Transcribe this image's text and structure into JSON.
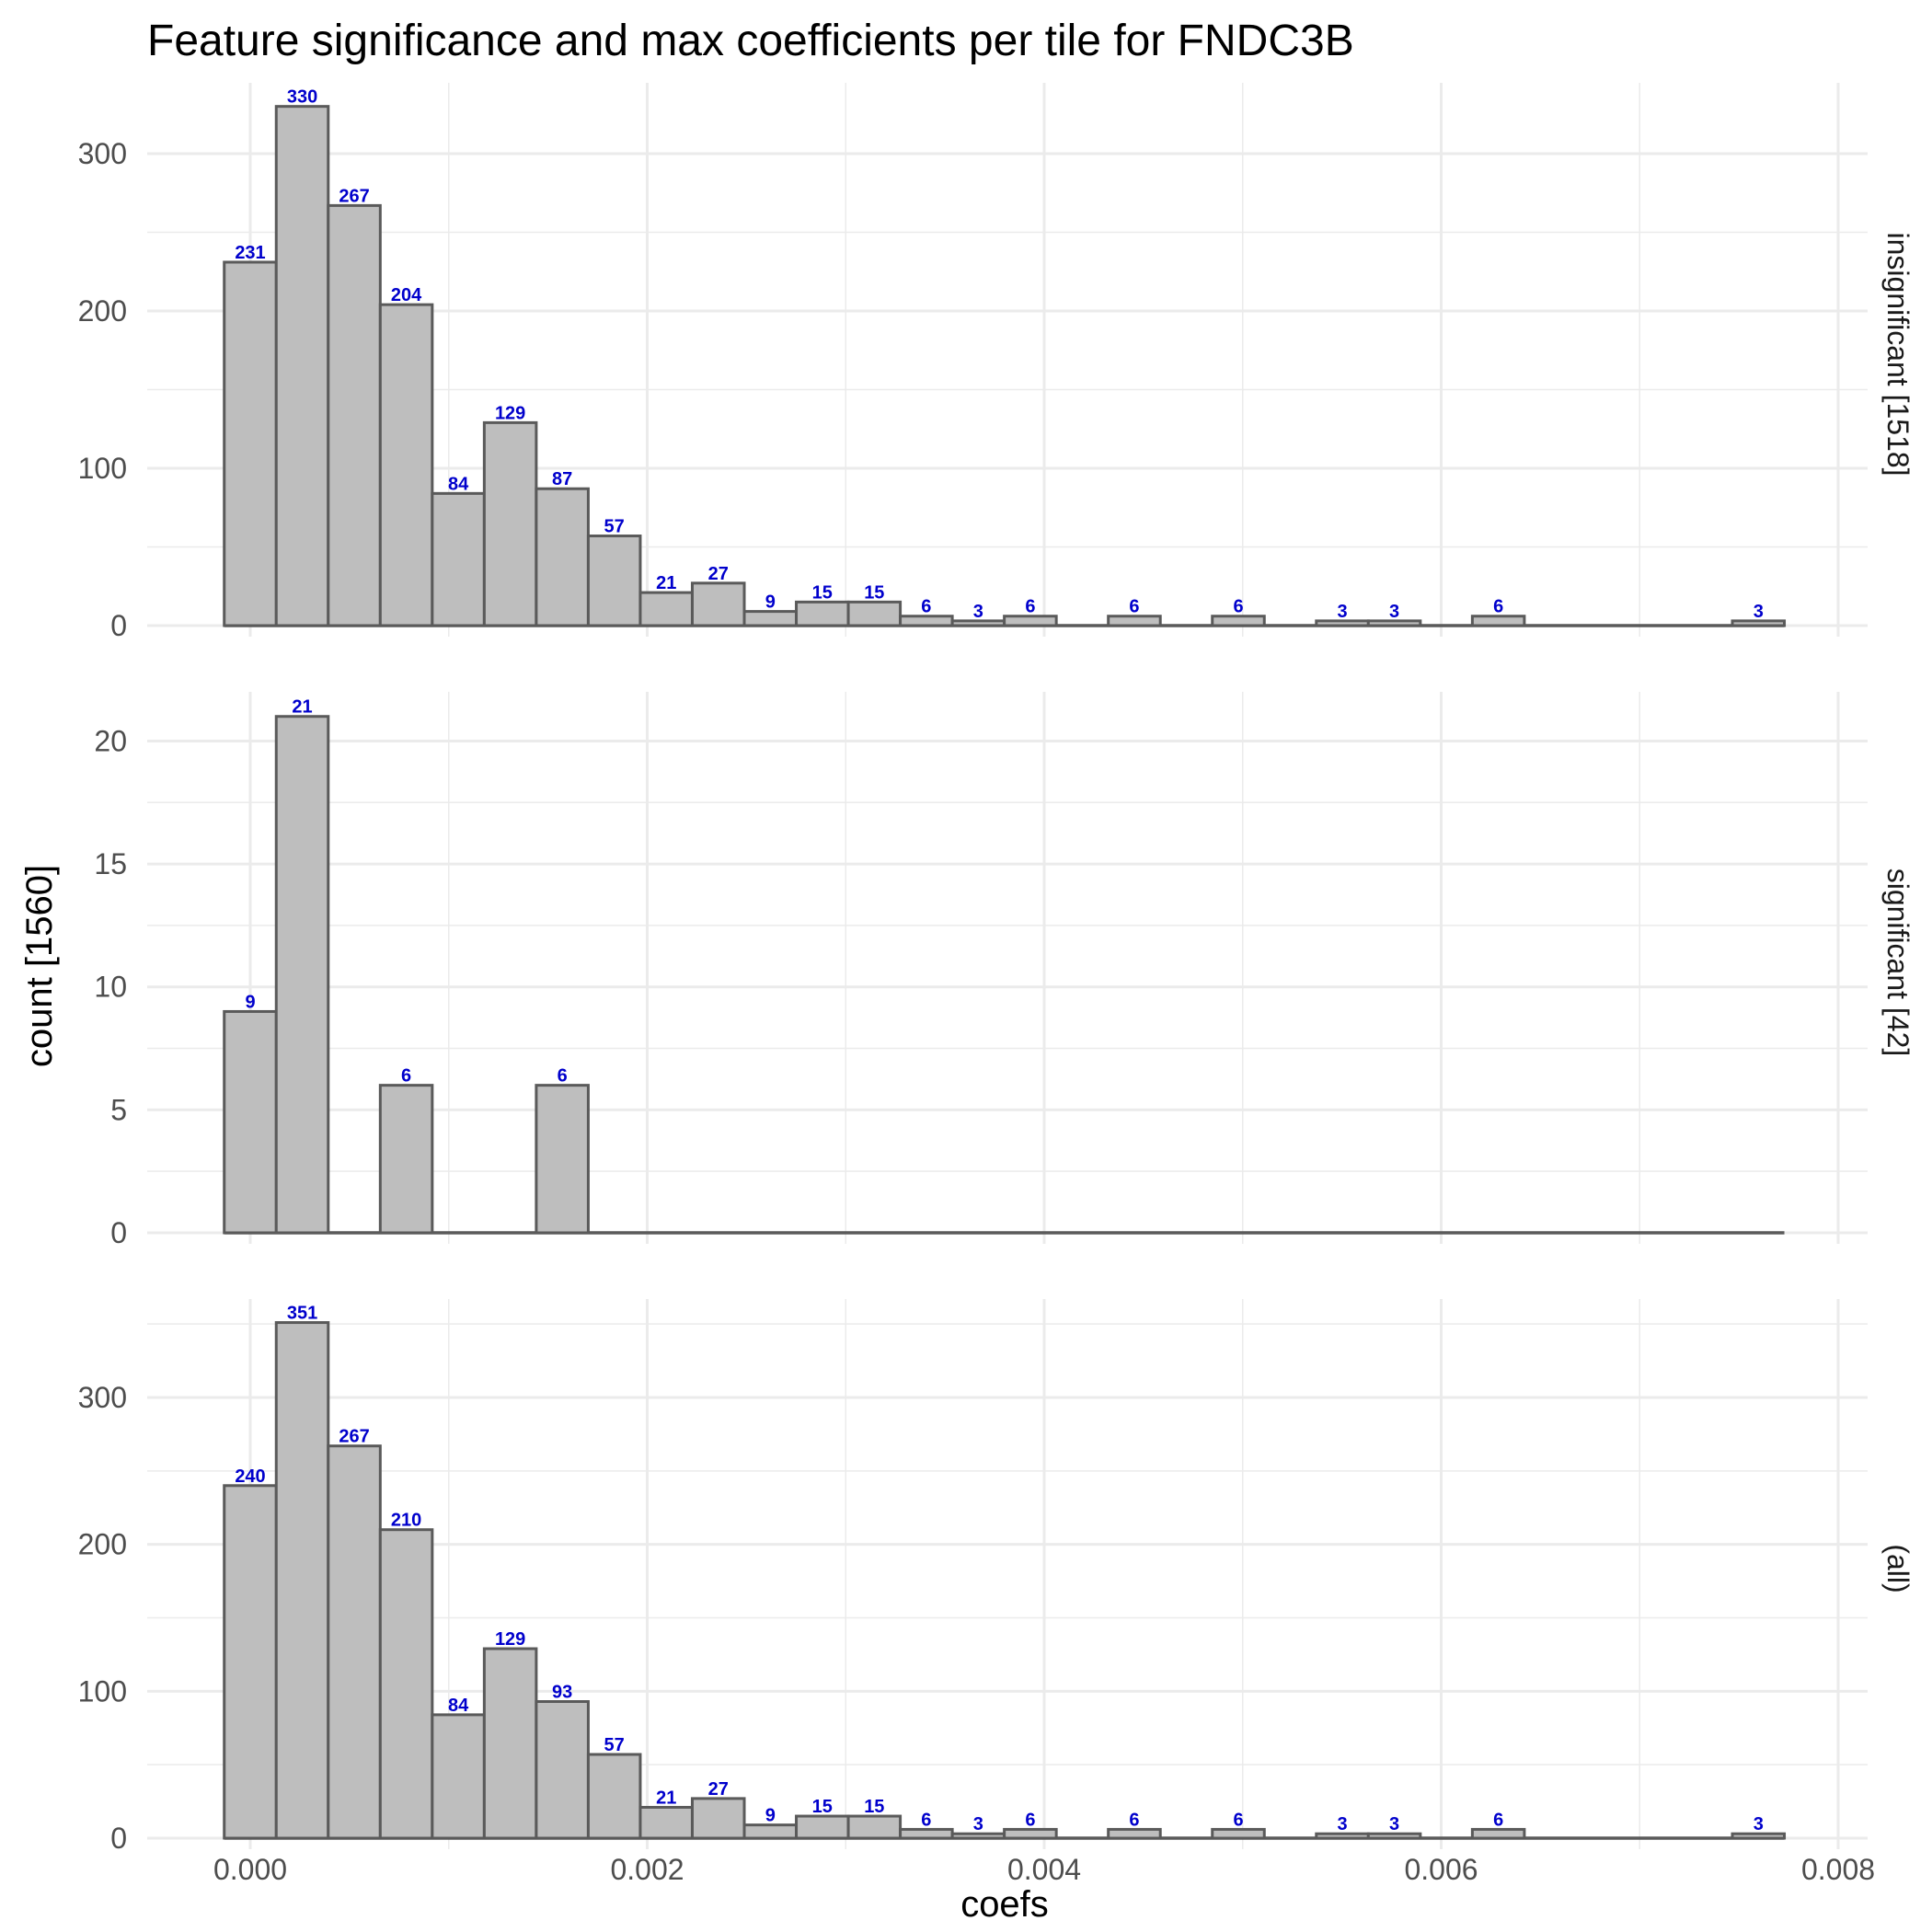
{
  "chart_data": {
    "type": "bar",
    "title": "Feature significance and max coefficients per tile for FNDC3B",
    "xlabel": "coefs",
    "ylabel": "count [1560]",
    "xlim": [
      -0.00026,
      0.008
    ],
    "x_ticks": [
      "0.000",
      "0.002",
      "0.004",
      "0.006",
      "0.008"
    ],
    "x_tick_values": [
      0.0,
      0.002,
      0.004,
      0.006,
      0.008
    ],
    "bin_width": 0.000262,
    "bin_start": -0.000131,
    "grid": true,
    "label_color": "#0000cc",
    "bar_fill": "#bebebe",
    "bar_stroke": "#5a5a5a",
    "panels": [
      {
        "strip": "insignificant [1518]",
        "ylim": [
          0,
          345
        ],
        "y_ticks": [
          "0",
          "100",
          "200",
          "300"
        ],
        "y_tick_values": [
          0,
          100,
          200,
          300
        ],
        "values": [
          231,
          330,
          267,
          204,
          84,
          129,
          87,
          57,
          21,
          27,
          9,
          15,
          15,
          6,
          3,
          6,
          0,
          6,
          0,
          6,
          0,
          3,
          3,
          0,
          6,
          0,
          0,
          0,
          0,
          3
        ]
      },
      {
        "strip": "significant [42]",
        "ylim": [
          0,
          22
        ],
        "y_ticks": [
          "0",
          "5",
          "10",
          "15",
          "20"
        ],
        "y_tick_values": [
          0,
          5,
          10,
          15,
          20
        ],
        "values": [
          9,
          21,
          0,
          6,
          0,
          0,
          6,
          0,
          0,
          0,
          0,
          0,
          0,
          0,
          0,
          0,
          0,
          0,
          0,
          0,
          0,
          0,
          0,
          0,
          0,
          0,
          0,
          0,
          0,
          0
        ]
      },
      {
        "strip": "(all)",
        "ylim": [
          0,
          367
        ],
        "y_ticks": [
          "0",
          "100",
          "200",
          "300"
        ],
        "y_tick_values": [
          0,
          100,
          200,
          300
        ],
        "values": [
          240,
          351,
          267,
          210,
          84,
          129,
          93,
          57,
          21,
          27,
          9,
          15,
          15,
          6,
          3,
          6,
          0,
          6,
          0,
          6,
          0,
          3,
          3,
          0,
          6,
          0,
          0,
          0,
          0,
          3
        ]
      }
    ]
  }
}
